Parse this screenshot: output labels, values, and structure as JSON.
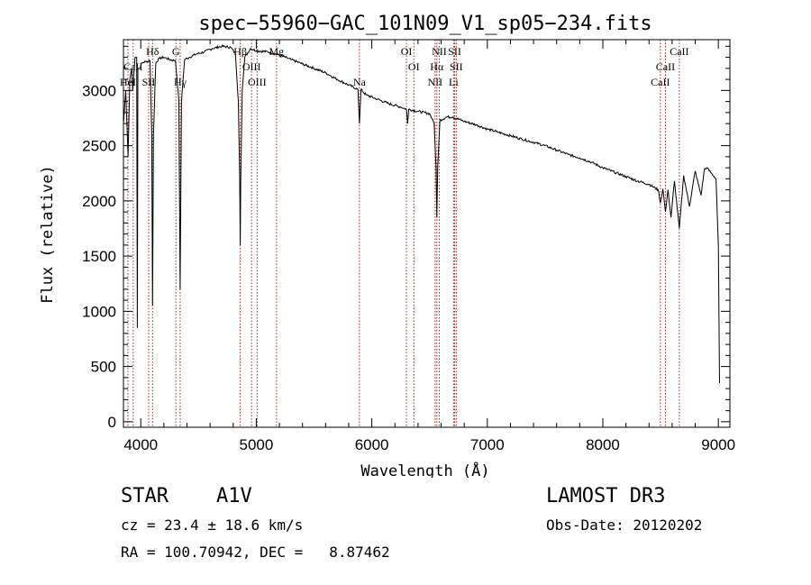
{
  "chart_data": {
    "type": "line",
    "title": "spec−55960−GAC_101N09_V1_sp05−234.fits",
    "xlabel": "Wavelength (Å)",
    "ylabel": "Flux (relative)",
    "xlim": [
      3850,
      9100
    ],
    "ylim": [
      -50,
      3460
    ],
    "x_ticks": [
      4000,
      5000,
      6000,
      7000,
      8000,
      9000
    ],
    "x_tick_labels": [
      "4000",
      "5000",
      "6000",
      "7000",
      "8000",
      "9000"
    ],
    "y_ticks": [
      0,
      500,
      1000,
      1500,
      2000,
      2500,
      3000
    ],
    "y_tick_labels": [
      "0",
      "500",
      "1000",
      "1500",
      "2000",
      "2500",
      "3000"
    ],
    "series": [
      {
        "name": "spectrum",
        "color": "#000000",
        "x": [
          3850,
          3870,
          3890,
          3905,
          3920,
          3930,
          3950,
          3965,
          3970,
          3975,
          3990,
          4010,
          4040,
          4080,
          4095,
          4102,
          4110,
          4130,
          4160,
          4200,
          4250,
          4300,
          4330,
          4341,
          4352,
          4380,
          4420,
          4480,
          4550,
          4620,
          4700,
          4780,
          4820,
          4845,
          4856,
          4861,
          4866,
          4878,
          4900,
          4950,
          5000,
          5100,
          5200,
          5300,
          5400,
          5500,
          5600,
          5700,
          5800,
          5880,
          5893,
          5906,
          5950,
          6050,
          6150,
          6250,
          6300,
          6310,
          6320,
          6400,
          6500,
          6540,
          6556,
          6563,
          6570,
          6590,
          6650,
          6700,
          6800,
          6900,
          7000,
          7100,
          7200,
          7300,
          7400,
          7500,
          7600,
          7700,
          7800,
          7900,
          8000,
          8100,
          8200,
          8300,
          8400,
          8480,
          8498,
          8520,
          8542,
          8565,
          8590,
          8620,
          8662,
          8700,
          8750,
          8800,
          8850,
          8880,
          8900,
          8940,
          8980,
          9000,
          9010
        ],
        "y": [
          2700,
          3000,
          2400,
          3100,
          3200,
          3000,
          3300,
          3300,
          850,
          3200,
          3200,
          3250,
          3260,
          3270,
          2600,
          1050,
          2600,
          3250,
          3290,
          3300,
          3280,
          3270,
          2900,
          1200,
          2900,
          3280,
          3300,
          3330,
          3350,
          3380,
          3400,
          3390,
          3330,
          2900,
          2200,
          1600,
          2200,
          3000,
          3300,
          3380,
          3360,
          3350,
          3320,
          3280,
          3240,
          3200,
          3160,
          3100,
          3050,
          3010,
          2700,
          3010,
          2960,
          2920,
          2880,
          2850,
          2830,
          2700,
          2830,
          2810,
          2790,
          2700,
          2300,
          1850,
          2300,
          2730,
          2760,
          2760,
          2720,
          2690,
          2650,
          2620,
          2590,
          2560,
          2530,
          2500,
          2460,
          2420,
          2390,
          2350,
          2300,
          2260,
          2220,
          2180,
          2150,
          2100,
          1980,
          2110,
          1900,
          2100,
          1850,
          2180,
          1750,
          2230,
          1950,
          2270,
          2050,
          2290,
          2300,
          2250,
          2200,
          1600,
          350
        ]
      }
    ],
    "line_markers": [
      {
        "name": "CaII",
        "wavelength": 3934,
        "row": 2
      },
      {
        "name": "HeI",
        "wavelength": 3889,
        "row": 3
      },
      {
        "name": "SII",
        "wavelength": 4068,
        "row": 3
      },
      {
        "name": "Hδ",
        "wavelength": 4102,
        "row": 1
      },
      {
        "name": "G",
        "wavelength": 4304,
        "row": 1
      },
      {
        "name": "Hγ",
        "wavelength": 4341,
        "row": 3
      },
      {
        "name": "Hβ",
        "wavelength": 4861,
        "row": 1
      },
      {
        "name": "OIII",
        "wavelength": 4959,
        "row": 2
      },
      {
        "name": "OIII",
        "wavelength": 5007,
        "row": 3
      },
      {
        "name": "Mg",
        "wavelength": 5175,
        "row": 1
      },
      {
        "name": "Na",
        "wavelength": 5893,
        "row": 3
      },
      {
        "name": "OI",
        "wavelength": 6300,
        "row": 1
      },
      {
        "name": "OI",
        "wavelength": 6364,
        "row": 2
      },
      {
        "name": "NII",
        "wavelength": 6548,
        "row": 3
      },
      {
        "name": "Hα",
        "wavelength": 6563,
        "row": 2
      },
      {
        "name": "NII",
        "wavelength": 6584,
        "row": 1
      },
      {
        "name": "SII",
        "wavelength": 6717,
        "row": 1
      },
      {
        "name": "Li",
        "wavelength": 6708,
        "row": 3
      },
      {
        "name": "SII",
        "wavelength": 6731,
        "row": 2
      },
      {
        "name": "CaII",
        "wavelength": 8498,
        "row": 3
      },
      {
        "name": "CaII",
        "wavelength": 8542,
        "row": 2
      },
      {
        "name": "CaII",
        "wavelength": 8662,
        "row": 1
      }
    ],
    "marker_color": "#b22222"
  },
  "info": {
    "object_type": "STAR",
    "subclass": "A1V",
    "survey": "LAMOST DR3",
    "velocity": "cz = 23.4 ± 18.6 km/s",
    "obs_date": "Obs-Date: 20120202",
    "coords": "RA = 100.70942, DEC =   8.87462"
  }
}
